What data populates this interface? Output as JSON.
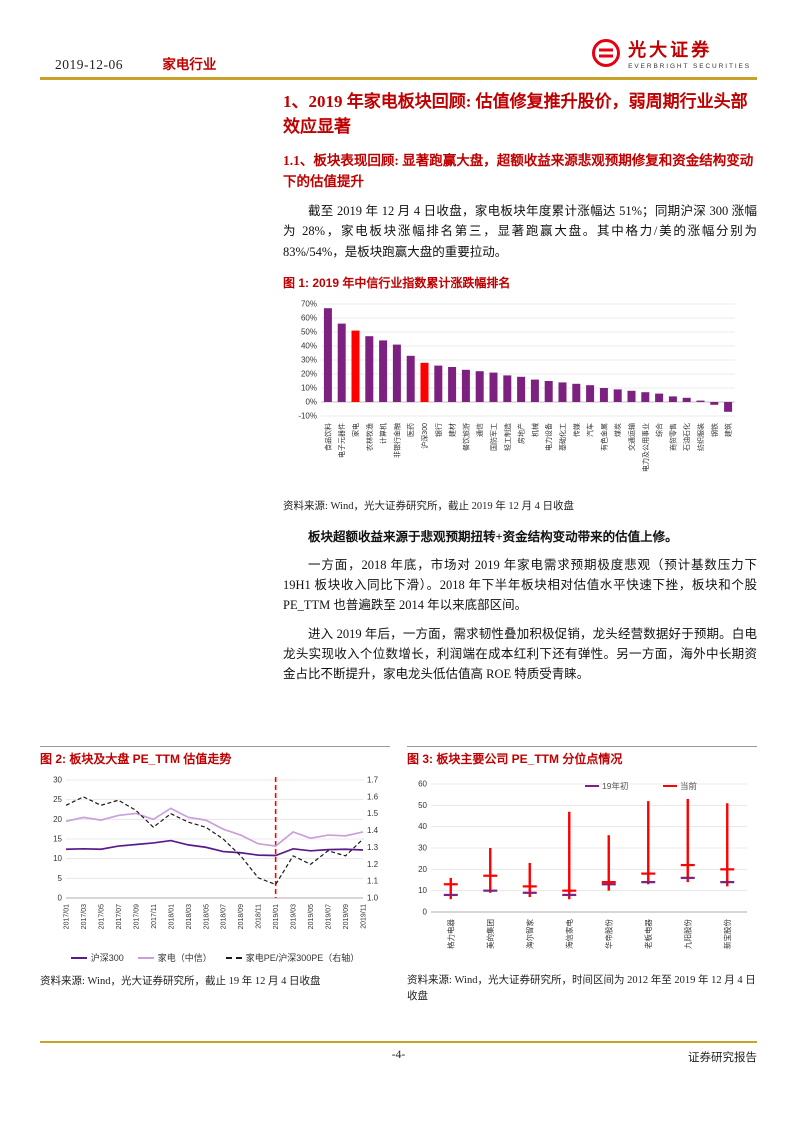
{
  "header": {
    "date": "2019-12-06",
    "industry": "家电行业",
    "brand_cn": "光大证券",
    "brand_en": "EVERBRIGHT SECURITIES"
  },
  "sections": {
    "h1": "1、2019 年家电板块回顾: 估值修复推升股价，弱周期行业头部效应显著",
    "h2": "1.1、板块表现回顾: 显著跑赢大盘，超额收益来源悲观预期修复和资金结构变动下的估值提升"
  },
  "paragraphs": {
    "p1": "截至 2019 年 12 月 4 日收盘，家电板块年度累计涨幅达 51%；同期沪深 300 涨幅为 28%，家电板块涨幅排名第三，显著跑赢大盘。其中格力/美的涨幅分别为 83%/54%，是板块跑赢大盘的重要拉动。",
    "p2": "板块超额收益来源于悲观预期扭转+资金结构变动带来的估值上修。",
    "p3": "一方面，2018 年底，市场对 2019 年家电需求预期极度悲观（预计基数压力下 19H1 板块收入同比下滑）。2018 年下半年板块相对估值水平快速下挫，板块和个股 PE_TTM 也普遍跌至 2014 年以来底部区间。",
    "p4": "进入 2019 年后，一方面，需求韧性叠加积极促销，龙头经营数据好于预期。白电龙头实现收入个位数增长，利润端在成本红利下还有弹性。另一方面，海外中长期资金占比不断提升，家电龙头低估值高 ROE 特质受青睐。"
  },
  "fig1": {
    "caption": "图 1: 2019 年中信行业指数累计涨跌幅排名",
    "source": "资料来源: Wind，光大证券研究所，截止 2019 年 12 月 4 日收盘"
  },
  "fig2": {
    "caption": "图 2: 板块及大盘 PE_TTM 估值走势",
    "source": "资料来源: Wind，光大证券研究所，截止 19 年 12 月 4 日收盘"
  },
  "fig3": {
    "caption": "图 3: 板块主要公司 PE_TTM 分位点情况",
    "source": "资料来源: Wind，光大证券研究所，时间区间为 2012 年至 2019 年 12 月 4 日收盘"
  },
  "footer": {
    "page": "-4-",
    "label": "证券研究报告"
  },
  "colors": {
    "accent_red": "#c00000",
    "bar_purple": "#7d2181",
    "highlight_red": "#ff0000",
    "gold_rule": "#c9a227"
  },
  "chart_data": [
    {
      "id": "fig1",
      "type": "bar",
      "title": "2019 年中信行业指数累计涨跌幅排名",
      "xlabel": "",
      "ylabel": "",
      "ylim": [
        -10,
        70
      ],
      "ytick_step": 10,
      "grid": true,
      "categories": [
        "食品饮料",
        "电子元器件",
        "家电",
        "农林牧渔",
        "计算机",
        "非银行金融",
        "医药",
        "沪深300",
        "银行",
        "建材",
        "餐饮旅游",
        "通信",
        "国防军工",
        "轻工制造",
        "房地产",
        "机械",
        "电力设备",
        "基础化工",
        "传媒",
        "汽车",
        "有色金属",
        "煤炭",
        "交通运输",
        "电力及公用事业",
        "综合",
        "商贸零售",
        "石油石化",
        "纺织服装",
        "钢铁",
        "建筑"
      ],
      "values": [
        67,
        56,
        51,
        47,
        44,
        41,
        33,
        28,
        26,
        25,
        23,
        22,
        21,
        19,
        18,
        16,
        15,
        14,
        13,
        12,
        10,
        9,
        8,
        7,
        6,
        4,
        3,
        1,
        -2,
        -7
      ],
      "highlight_indices": [
        2,
        7
      ],
      "bar_color": "#7d2181",
      "highlight_color": "#ff0000"
    },
    {
      "id": "fig2",
      "type": "line",
      "title": "板块及大盘 PE_TTM 估值走势",
      "x": [
        "2017/01",
        "2017/03",
        "2017/05",
        "2017/07",
        "2017/09",
        "2017/11",
        "2018/01",
        "2018/03",
        "2018/05",
        "2018/07",
        "2018/09",
        "2018/11",
        "2019/01",
        "2019/03",
        "2019/05",
        "2019/07",
        "2019/09",
        "2019/11"
      ],
      "left_ylim": [
        0,
        30
      ],
      "left_yticks": [
        0,
        5,
        10,
        15,
        20,
        25,
        30
      ],
      "right_ylim": [
        1.0,
        1.7
      ],
      "right_yticks": [
        1.0,
        1.1,
        1.2,
        1.3,
        1.4,
        1.5,
        1.6,
        1.7
      ],
      "marker_x": "2019/01",
      "marker_color": "#ff0000",
      "grid": true,
      "legend_position": "bottom",
      "series": [
        {
          "name": "沪深300",
          "axis": "left",
          "style": "solid",
          "color": "#5a1a8a",
          "values": [
            12.4,
            12.5,
            12.4,
            13.2,
            13.6,
            14.0,
            14.6,
            13.5,
            12.9,
            11.8,
            11.5,
            10.9,
            10.8,
            12.5,
            12.0,
            12.3,
            12.4,
            12.2
          ]
        },
        {
          "name": "家电（中信）",
          "axis": "left",
          "style": "solid",
          "color": "#c9a0dc",
          "values": [
            19.5,
            20.5,
            19.8,
            21.0,
            21.5,
            20.0,
            22.8,
            20.5,
            19.8,
            17.5,
            16.0,
            13.8,
            13.2,
            16.8,
            15.2,
            16.0,
            15.8,
            16.8
          ]
        },
        {
          "name": "家电PE/沪深300PE（右轴）",
          "axis": "right",
          "style": "dashed",
          "color": "#1a1a1a",
          "values": [
            1.55,
            1.6,
            1.55,
            1.58,
            1.52,
            1.42,
            1.5,
            1.45,
            1.42,
            1.35,
            1.25,
            1.12,
            1.08,
            1.25,
            1.2,
            1.28,
            1.25,
            1.35
          ]
        }
      ]
    },
    {
      "id": "fig3",
      "type": "range",
      "title": "板块主要公司 PE_TTM 分位点情况",
      "ylim": [
        0,
        60
      ],
      "yticks": [
        0,
        10,
        20,
        30,
        40,
        50,
        60
      ],
      "grid": true,
      "legend": [
        {
          "name": "19年初",
          "color": "#7d2181"
        },
        {
          "name": "当前",
          "color": "#ff0000"
        }
      ],
      "categories": [
        "格力电器",
        "美的集团",
        "海尔智家",
        "海信家电",
        "华帝股份",
        "老板电器",
        "九阳股份",
        "新宝股份"
      ],
      "ranges": [
        [
          6,
          16
        ],
        [
          9,
          30
        ],
        [
          7,
          23
        ],
        [
          6,
          47
        ],
        [
          10,
          36
        ],
        [
          13,
          52
        ],
        [
          14,
          53
        ],
        [
          12,
          51
        ]
      ],
      "start_of_2019": [
        8,
        10,
        9,
        8,
        13,
        14,
        16,
        14
      ],
      "current": [
        13,
        17,
        12,
        10,
        14,
        18,
        22,
        20
      ],
      "range_color": "#ff0000"
    }
  ]
}
